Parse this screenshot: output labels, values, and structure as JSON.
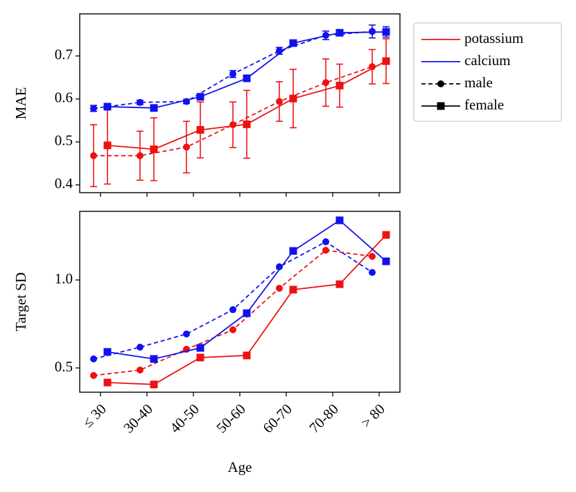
{
  "legend": {
    "colors": [
      {
        "name": "potassium",
        "color": "#ee1111"
      },
      {
        "name": "calcium",
        "color": "#1111ee"
      }
    ],
    "styles": [
      {
        "name": "male",
        "marker": "circle",
        "dashed": true
      },
      {
        "name": "female",
        "marker": "square",
        "dashed": false
      }
    ],
    "corner": "outside upper right"
  },
  "chart_data": [
    {
      "type": "line",
      "ylabel": "MAE",
      "ylim": [
        0.382,
        0.798
      ],
      "yticks": [
        0.4,
        0.5,
        0.6,
        0.7
      ],
      "series": [
        {
          "element": "potassium",
          "sex": "male",
          "values": [
            0.468,
            0.468,
            0.488,
            0.54,
            0.594,
            0.638,
            0.675
          ],
          "errors": [
            0.072,
            0.057,
            0.06,
            0.053,
            0.046,
            0.055,
            0.04
          ]
        },
        {
          "element": "potassium",
          "sex": "female",
          "values": [
            0.492,
            0.483,
            0.528,
            0.541,
            0.601,
            0.631,
            0.688
          ],
          "errors": [
            0.09,
            0.073,
            0.065,
            0.079,
            0.068,
            0.05,
            0.052
          ]
        },
        {
          "element": "calcium",
          "sex": "male",
          "values": [
            0.578,
            0.592,
            0.594,
            0.658,
            0.712,
            0.748,
            0.757
          ],
          "errors": [
            0.007,
            0.005,
            0.005,
            0.008,
            0.008,
            0.01,
            0.015
          ]
        },
        {
          "element": "calcium",
          "sex": "female",
          "values": [
            0.582,
            0.579,
            0.605,
            0.648,
            0.73,
            0.754,
            0.756
          ],
          "errors": [
            0.005,
            0.006,
            0.005,
            0.006,
            0.005,
            0.006,
            0.012
          ]
        }
      ]
    },
    {
      "type": "line",
      "ylabel": "Target SD",
      "xlabel": "Age",
      "categories": [
        "≤ 30",
        "30-40",
        "40-50",
        "50-60",
        "60-70",
        "70-80",
        "> 80"
      ],
      "ylim": [
        0.362,
        1.39
      ],
      "yticks": [
        0.5,
        {
          "value": 1,
          "label": "1.0"
        }
      ],
      "series": [
        {
          "element": "potassium",
          "sex": "male",
          "values": [
            0.457,
            0.488,
            0.606,
            0.717,
            0.953,
            1.169,
            1.134
          ]
        },
        {
          "element": "potassium",
          "sex": "female",
          "values": [
            0.417,
            0.406,
            0.559,
            0.571,
            0.945,
            0.976,
            1.256
          ]
        },
        {
          "element": "calcium",
          "sex": "male",
          "values": [
            0.551,
            0.618,
            0.693,
            0.831,
            1.075,
            1.217,
            1.043
          ]
        },
        {
          "element": "calcium",
          "sex": "female",
          "values": [
            0.591,
            0.551,
            0.614,
            0.811,
            1.165,
            1.339,
            1.106
          ]
        }
      ]
    }
  ]
}
